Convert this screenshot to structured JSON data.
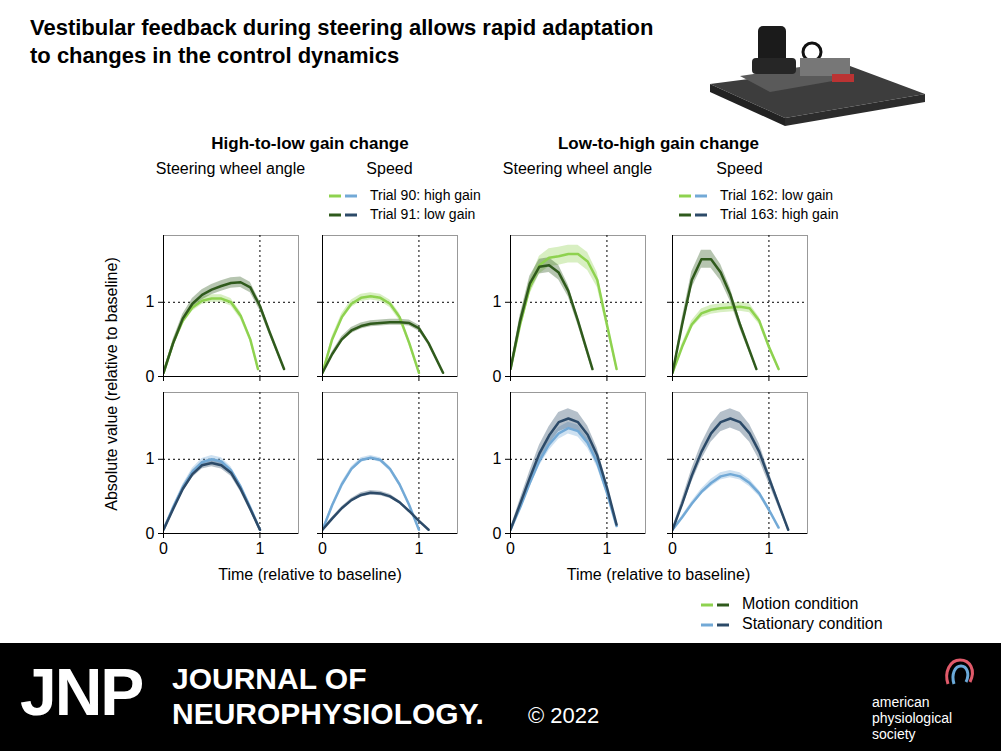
{
  "title": "Vestibular feedback during steering allows rapid adaptation to changes in the control dynamics",
  "ylabel": "Absolute value (relative to baseline)",
  "groups": [
    {
      "title": "High-to-low gain change",
      "xlabel": "Time (relative to baseline)"
    },
    {
      "title": "Low-to-high gain change",
      "xlabel": "Time (relative to baseline)"
    }
  ],
  "conditions": [
    "Motion condition",
    "Stationary condition"
  ],
  "footer": {
    "logo": "JNP",
    "journal": [
      "JOURNAL OF",
      "NEUROPHYSIOLOGY."
    ],
    "copyright": "© 2022",
    "society": "american physiological society"
  },
  "chart_data": [
    {
      "type": "line",
      "title": "Steering wheel angle",
      "xlim": [
        0,
        1.4
      ],
      "xticks": [
        0,
        1
      ],
      "ylim": [
        0,
        1.9
      ],
      "yticks": [
        0,
        1
      ],
      "tick_labels": "y",
      "ref_x": 1,
      "ref_y": 1,
      "series": [
        {
          "name": "Trial 90: high gain",
          "color": "#8ed24f",
          "x": [
            0,
            0.1,
            0.2,
            0.3,
            0.4,
            0.5,
            0.6,
            0.7,
            0.8,
            0.9,
            0.98
          ],
          "values": [
            0.05,
            0.45,
            0.75,
            0.93,
            1.02,
            1.05,
            1.05,
            1.0,
            0.82,
            0.5,
            0.1
          ],
          "error": [
            0.02,
            0.04,
            0.05,
            0.05,
            0.05,
            0.05,
            0.05,
            0.05,
            0.05,
            0.04,
            0.02
          ]
        },
        {
          "name": "Trial 91: low gain",
          "color": "#2f5a1c",
          "x": [
            0,
            0.1,
            0.2,
            0.3,
            0.4,
            0.5,
            0.6,
            0.7,
            0.8,
            0.9,
            1.0,
            1.1,
            1.25
          ],
          "values": [
            0.05,
            0.45,
            0.78,
            0.98,
            1.1,
            1.17,
            1.22,
            1.26,
            1.27,
            1.2,
            0.95,
            0.6,
            0.1
          ],
          "error": [
            0.02,
            0.05,
            0.06,
            0.07,
            0.07,
            0.07,
            0.07,
            0.07,
            0.07,
            0.07,
            0.06,
            0.04,
            0.02
          ]
        }
      ]
    },
    {
      "type": "line",
      "title": "Speed",
      "xlim": [
        0,
        1.4
      ],
      "xticks": [
        0,
        1
      ],
      "ylim": [
        0,
        1.9
      ],
      "yticks": [
        0,
        1
      ],
      "tick_labels": false,
      "ref_x": 1,
      "ref_y": 1,
      "legend": "top",
      "series": [
        {
          "name": "Trial 90: high gain",
          "color": "#8ed24f",
          "x": [
            0,
            0.1,
            0.2,
            0.3,
            0.4,
            0.5,
            0.6,
            0.7,
            0.8,
            0.9,
            1.0
          ],
          "values": [
            0.05,
            0.5,
            0.8,
            0.98,
            1.06,
            1.08,
            1.06,
            0.98,
            0.8,
            0.45,
            0.05
          ],
          "error": [
            0.02,
            0.04,
            0.05,
            0.05,
            0.05,
            0.05,
            0.05,
            0.05,
            0.05,
            0.04,
            0.02
          ]
        },
        {
          "name": "Trial 91: low gain",
          "color": "#2f5a1c",
          "x": [
            0,
            0.1,
            0.2,
            0.3,
            0.4,
            0.5,
            0.6,
            0.7,
            0.8,
            0.9,
            1.0,
            1.1,
            1.25
          ],
          "values": [
            0.05,
            0.3,
            0.5,
            0.62,
            0.68,
            0.71,
            0.72,
            0.73,
            0.73,
            0.72,
            0.65,
            0.45,
            0.05
          ],
          "error": [
            0.02,
            0.03,
            0.04,
            0.04,
            0.04,
            0.04,
            0.04,
            0.04,
            0.04,
            0.04,
            0.04,
            0.03,
            0.02
          ]
        }
      ]
    },
    {
      "type": "line",
      "title": "Steering wheel angle",
      "xlim": [
        0,
        1.4
      ],
      "xticks": [
        0,
        1
      ],
      "ylim": [
        0,
        1.9
      ],
      "yticks": [
        0,
        1
      ],
      "tick_labels": "y",
      "ref_x": 1,
      "ref_y": 1,
      "series": [
        {
          "name": "Trial 162: low gain",
          "color": "#8ed24f",
          "x": [
            0,
            0.1,
            0.2,
            0.3,
            0.4,
            0.5,
            0.6,
            0.7,
            0.8,
            0.9,
            1.0,
            1.1
          ],
          "values": [
            0.1,
            0.7,
            1.2,
            1.5,
            1.6,
            1.62,
            1.65,
            1.65,
            1.55,
            1.3,
            0.7,
            0.1
          ],
          "error": [
            0.03,
            0.08,
            0.1,
            0.12,
            0.12,
            0.12,
            0.12,
            0.12,
            0.12,
            0.1,
            0.06,
            0.03
          ]
        },
        {
          "name": "Trial 163: high gain",
          "color": "#2f5a1c",
          "x": [
            0,
            0.1,
            0.2,
            0.3,
            0.4,
            0.5,
            0.6,
            0.7,
            0.85
          ],
          "values": [
            0.1,
            0.75,
            1.25,
            1.48,
            1.5,
            1.4,
            1.15,
            0.75,
            0.1
          ],
          "error": [
            0.03,
            0.08,
            0.1,
            0.1,
            0.1,
            0.1,
            0.08,
            0.06,
            0.03
          ]
        }
      ]
    },
    {
      "type": "line",
      "title": "Speed",
      "xlim": [
        0,
        1.4
      ],
      "xticks": [
        0,
        1
      ],
      "ylim": [
        0,
        1.9
      ],
      "yticks": [
        0,
        1
      ],
      "tick_labels": false,
      "ref_x": 1,
      "ref_y": 1,
      "legend": "top",
      "series": [
        {
          "name": "Trial 162: low gain",
          "color": "#8ed24f",
          "x": [
            0,
            0.1,
            0.2,
            0.3,
            0.4,
            0.5,
            0.6,
            0.7,
            0.8,
            0.9,
            1.0,
            1.1
          ],
          "values": [
            0.05,
            0.4,
            0.7,
            0.85,
            0.9,
            0.92,
            0.93,
            0.94,
            0.92,
            0.75,
            0.4,
            0.1
          ],
          "error": [
            0.02,
            0.04,
            0.05,
            0.06,
            0.06,
            0.06,
            0.06,
            0.06,
            0.06,
            0.05,
            0.04,
            0.02
          ]
        },
        {
          "name": "Trial 163: high gain",
          "color": "#2f5a1c",
          "x": [
            0,
            0.1,
            0.2,
            0.3,
            0.4,
            0.5,
            0.6,
            0.7,
            0.87
          ],
          "values": [
            0.05,
            0.7,
            1.3,
            1.58,
            1.58,
            1.4,
            1.1,
            0.7,
            0.1
          ],
          "error": [
            0.02,
            0.08,
            0.11,
            0.12,
            0.12,
            0.11,
            0.09,
            0.06,
            0.02
          ]
        }
      ]
    },
    {
      "type": "line",
      "xlim": [
        0,
        1.4
      ],
      "xticks": [
        0,
        1
      ],
      "ylim": [
        0,
        1.9
      ],
      "yticks": [
        0,
        1
      ],
      "tick_labels": true,
      "ref_x": 1,
      "ref_y": 1,
      "series": [
        {
          "name": "Trial 90: high gain",
          "color": "#72a9d6",
          "x": [
            0,
            0.1,
            0.2,
            0.3,
            0.4,
            0.5,
            0.6,
            0.7,
            0.8,
            0.9,
            1.0
          ],
          "values": [
            0.05,
            0.35,
            0.62,
            0.83,
            0.96,
            1.0,
            0.97,
            0.85,
            0.63,
            0.35,
            0.05
          ],
          "error": [
            0.02,
            0.03,
            0.04,
            0.05,
            0.05,
            0.05,
            0.05,
            0.05,
            0.04,
            0.03,
            0.02
          ]
        },
        {
          "name": "Trial 91: low gain",
          "color": "#2c4a68",
          "x": [
            0,
            0.1,
            0.2,
            0.3,
            0.4,
            0.5,
            0.6,
            0.7,
            0.8,
            0.9,
            1.0
          ],
          "values": [
            0.05,
            0.33,
            0.6,
            0.8,
            0.92,
            0.95,
            0.92,
            0.82,
            0.6,
            0.33,
            0.05
          ],
          "error": [
            0.02,
            0.03,
            0.04,
            0.05,
            0.05,
            0.05,
            0.05,
            0.05,
            0.04,
            0.03,
            0.02
          ]
        }
      ]
    },
    {
      "type": "line",
      "xlim": [
        0,
        1.4
      ],
      "xticks": [
        0,
        1
      ],
      "ylim": [
        0,
        1.9
      ],
      "yticks": [
        0,
        1
      ],
      "tick_labels": "x",
      "ref_x": 1,
      "ref_y": 1,
      "series": [
        {
          "name": "Trial 90: high gain",
          "color": "#72a9d6",
          "x": [
            0,
            0.1,
            0.2,
            0.3,
            0.4,
            0.5,
            0.6,
            0.7,
            0.8,
            0.9,
            1.0
          ],
          "values": [
            0.05,
            0.38,
            0.66,
            0.87,
            0.99,
            1.02,
            0.99,
            0.87,
            0.66,
            0.38,
            0.05
          ],
          "error": [
            0.02,
            0.02,
            0.03,
            0.03,
            0.03,
            0.03,
            0.03,
            0.03,
            0.03,
            0.02,
            0.02
          ]
        },
        {
          "name": "Trial 91: low gain",
          "color": "#2c4a68",
          "x": [
            0,
            0.1,
            0.2,
            0.3,
            0.4,
            0.5,
            0.6,
            0.7,
            0.8,
            0.9,
            1.0,
            1.1
          ],
          "values": [
            0.05,
            0.2,
            0.34,
            0.45,
            0.52,
            0.55,
            0.54,
            0.5,
            0.42,
            0.3,
            0.17,
            0.05
          ],
          "error": [
            0.01,
            0.02,
            0.02,
            0.02,
            0.03,
            0.03,
            0.03,
            0.03,
            0.02,
            0.02,
            0.02,
            0.01
          ]
        }
      ]
    },
    {
      "type": "line",
      "xlim": [
        0,
        1.4
      ],
      "xticks": [
        0,
        1
      ],
      "ylim": [
        0,
        1.9
      ],
      "yticks": [
        0,
        1
      ],
      "tick_labels": true,
      "ref_x": 1,
      "ref_y": 1,
      "series": [
        {
          "name": "Trial 162: low gain",
          "color": "#72a9d6",
          "x": [
            0,
            0.1,
            0.2,
            0.3,
            0.4,
            0.5,
            0.6,
            0.7,
            0.8,
            0.9,
            1.0,
            1.1
          ],
          "values": [
            0.05,
            0.35,
            0.68,
            0.98,
            1.2,
            1.35,
            1.42,
            1.38,
            1.22,
            0.95,
            0.55,
            0.1
          ],
          "error": [
            0.02,
            0.04,
            0.06,
            0.07,
            0.08,
            0.08,
            0.08,
            0.08,
            0.07,
            0.06,
            0.04,
            0.02
          ]
        },
        {
          "name": "Trial 163: high gain",
          "color": "#2c4a68",
          "x": [
            0,
            0.1,
            0.2,
            0.3,
            0.4,
            0.5,
            0.6,
            0.7,
            0.8,
            0.9,
            1.0,
            1.1
          ],
          "values": [
            0.05,
            0.4,
            0.75,
            1.08,
            1.32,
            1.5,
            1.55,
            1.5,
            1.33,
            1.05,
            0.62,
            0.12
          ],
          "error": [
            0.02,
            0.06,
            0.09,
            0.11,
            0.12,
            0.13,
            0.13,
            0.13,
            0.12,
            0.1,
            0.06,
            0.02
          ]
        }
      ]
    },
    {
      "type": "line",
      "xlim": [
        0,
        1.4
      ],
      "xticks": [
        0,
        1
      ],
      "ylim": [
        0,
        1.9
      ],
      "yticks": [
        0,
        1
      ],
      "tick_labels": "x",
      "ref_x": 1,
      "ref_y": 1,
      "series": [
        {
          "name": "Trial 162: low gain",
          "color": "#72a9d6",
          "x": [
            0,
            0.1,
            0.2,
            0.3,
            0.4,
            0.5,
            0.6,
            0.7,
            0.8,
            0.9,
            1.0,
            1.1
          ],
          "values": [
            0.05,
            0.22,
            0.4,
            0.56,
            0.68,
            0.77,
            0.8,
            0.77,
            0.68,
            0.54,
            0.32,
            0.08
          ],
          "error": [
            0.01,
            0.02,
            0.03,
            0.04,
            0.05,
            0.05,
            0.05,
            0.05,
            0.05,
            0.04,
            0.03,
            0.01
          ]
        },
        {
          "name": "Trial 163: high gain",
          "color": "#2c4a68",
          "x": [
            0,
            0.1,
            0.2,
            0.3,
            0.4,
            0.5,
            0.6,
            0.7,
            0.8,
            0.9,
            1.0,
            1.1,
            1.2
          ],
          "values": [
            0.05,
            0.4,
            0.78,
            1.1,
            1.35,
            1.5,
            1.55,
            1.5,
            1.35,
            1.1,
            0.75,
            0.4,
            0.05
          ],
          "error": [
            0.02,
            0.06,
            0.09,
            0.11,
            0.12,
            0.13,
            0.13,
            0.13,
            0.12,
            0.11,
            0.08,
            0.05,
            0.02
          ]
        }
      ]
    }
  ]
}
